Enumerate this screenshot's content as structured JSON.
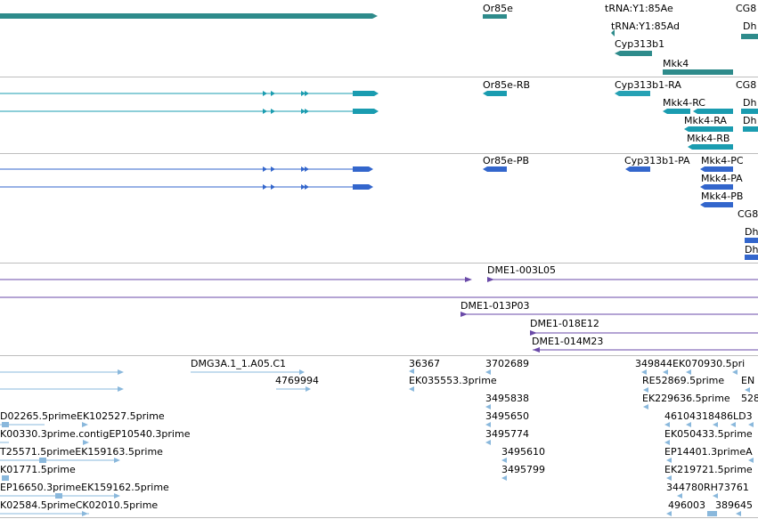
{
  "colors": {
    "gene": "#2e8b8b",
    "transcript": "#1a9cb0",
    "protein": "#3366cc",
    "clone": "#6a4aa8",
    "est": "#8ab8dc",
    "separator": "#bdbdbd"
  },
  "tracks": {
    "genes": {
      "labels": [
        "Or85e",
        "tRNA:Y1:85Ae",
        "tRNA:Y1:85Ad",
        "Cyp313b1",
        "Mkk4",
        "CG8",
        "Dh"
      ]
    },
    "transcripts": {
      "labels": [
        "Or85e-RB",
        "Cyp313b1-RA",
        "CG8",
        "Mkk4-RC",
        "Dh",
        "Mkk4-RA",
        "Dh",
        "Mkk4-RB"
      ]
    },
    "proteins": {
      "labels": [
        "Or85e-PB",
        "Cyp313b1-PA",
        "Mkk4-PC",
        "Mkk4-PA",
        "Mkk4-PB",
        "CG8",
        "Dh",
        "Dh"
      ]
    },
    "clones": {
      "labels": [
        "DME1-003L05",
        "DME1-013P03",
        "DME1-018E12",
        "DME1-014M23"
      ]
    },
    "ests": {
      "labels": [
        "DMG3A.1_1.A05.C1",
        "4769994",
        "36367",
        "EK035553.3prime",
        "3702689",
        "3495838",
        "3495650",
        "3495774",
        "3495610",
        "3495799",
        "349844EK070930.5pri",
        "RE52869.5prime",
        "EN",
        "EK229636.5prime",
        "528",
        "46104318486LD3",
        "EK050433.5prime",
        "EP14401.3primeA",
        "EK219721.5prime",
        "344780RH73761",
        "496003",
        "389645",
        "D02265.5primeEK102527.5prime",
        "K00330.3prime.contigEP10540.3prime",
        "T25571.5primeEK159163.5prime",
        "K01771.5prime",
        "EP16650.3primeEK159162.5prime",
        "K02584.5primeCK02010.5prime"
      ]
    }
  }
}
